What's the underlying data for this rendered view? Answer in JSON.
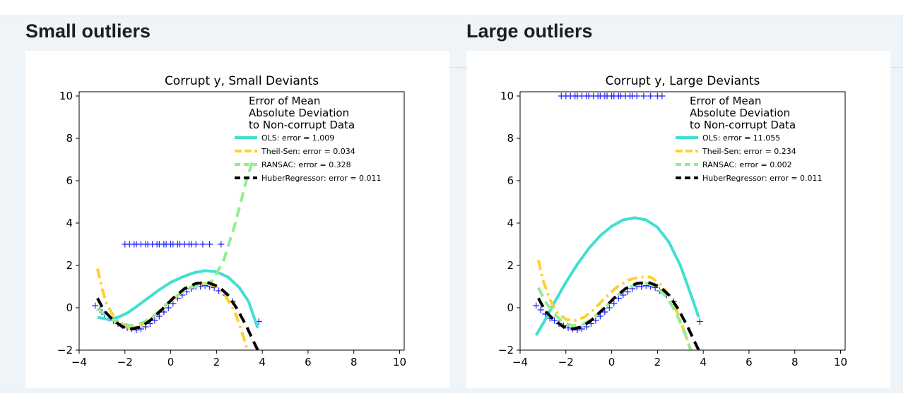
{
  "panels": [
    {
      "heading": "Small outliers"
    },
    {
      "heading": "Large outliers"
    }
  ],
  "colors": {
    "ols": "#40e0d0",
    "theil_sen": "#ffd02e",
    "ransac": "#90ee90",
    "huber": "#000000",
    "points": "#1f1fff"
  },
  "chart_data": [
    {
      "type": "scatter",
      "title": "Corrupt y, Small Deviants",
      "xlim": [
        -4,
        10.2
      ],
      "ylim": [
        -2,
        10.2
      ],
      "xticks": [
        "−4",
        "−2",
        "0",
        "2",
        "4",
        "6",
        "8",
        "10"
      ],
      "xtick_values": [
        -4,
        -2,
        0,
        2,
        4,
        6,
        8,
        10
      ],
      "yticks": [
        "−2",
        "0",
        "2",
        "4",
        "6",
        "8",
        "10"
      ],
      "ytick_values": [
        -2,
        0,
        2,
        4,
        6,
        8,
        10
      ],
      "legend_title": [
        "Error of Mean",
        "Absolute Deviation",
        "to Non-corrupt Data"
      ],
      "legend_position": "upper-right",
      "series": [
        {
          "name": "OLS: error = 1.009",
          "key": "ols",
          "style": "solid",
          "points": [
            [
              -3.2,
              -0.45
            ],
            [
              -2.7,
              -0.55
            ],
            [
              -2.3,
              -0.45
            ],
            [
              -1.9,
              -0.25
            ],
            [
              -1.5,
              0.05
            ],
            [
              -1.0,
              0.45
            ],
            [
              -0.5,
              0.85
            ],
            [
              0,
              1.2
            ],
            [
              0.5,
              1.45
            ],
            [
              1.0,
              1.65
            ],
            [
              1.5,
              1.75
            ],
            [
              2.0,
              1.7
            ],
            [
              2.5,
              1.45
            ],
            [
              3.0,
              0.95
            ],
            [
              3.4,
              0.3
            ],
            [
              3.8,
              -0.95
            ]
          ]
        },
        {
          "name": "Theil-Sen: error = 0.034",
          "key": "theil_sen",
          "style": "dashdot",
          "points": [
            [
              -3.2,
              1.85
            ],
            [
              -3.0,
              0.9
            ],
            [
              -2.8,
              0.2
            ],
            [
              -2.5,
              -0.4
            ],
            [
              -2.2,
              -0.75
            ],
            [
              -1.8,
              -0.95
            ],
            [
              -1.4,
              -0.9
            ],
            [
              -1.0,
              -0.65
            ],
            [
              -0.5,
              -0.2
            ],
            [
              0,
              0.3
            ],
            [
              0.5,
              0.75
            ],
            [
              1.0,
              1.05
            ],
            [
              1.5,
              1.15
            ],
            [
              2.0,
              1.0
            ],
            [
              2.4,
              0.55
            ],
            [
              2.8,
              -0.2
            ],
            [
              3.1,
              -1.1
            ],
            [
              3.35,
              -2.0
            ]
          ]
        },
        {
          "name": "RANSAC: error = 0.328",
          "key": "ransac",
          "style": "dashed",
          "points": [
            [
              -3.2,
              -0.05
            ],
            [
              -2.7,
              -0.45
            ],
            [
              -2.2,
              -0.75
            ],
            [
              -1.7,
              -0.85
            ],
            [
              -1.2,
              -0.7
            ],
            [
              -0.7,
              -0.35
            ],
            [
              -0.2,
              0.15
            ],
            [
              0.3,
              0.6
            ],
            [
              0.8,
              0.95
            ],
            [
              1.3,
              1.05
            ],
            [
              1.8,
              1.25
            ],
            [
              2.3,
              2.2
            ],
            [
              2.8,
              3.9
            ],
            [
              3.3,
              6.0
            ],
            [
              3.6,
              7.0
            ]
          ]
        },
        {
          "name": "HuberRegressor: error = 0.011",
          "key": "huber",
          "style": "dashed",
          "points": [
            [
              -3.2,
              0.45
            ],
            [
              -2.9,
              -0.15
            ],
            [
              -2.5,
              -0.6
            ],
            [
              -2.1,
              -0.9
            ],
            [
              -1.7,
              -1.0
            ],
            [
              -1.3,
              -0.9
            ],
            [
              -0.9,
              -0.6
            ],
            [
              -0.4,
              -0.1
            ],
            [
              0.1,
              0.45
            ],
            [
              0.6,
              0.9
            ],
            [
              1.1,
              1.15
            ],
            [
              1.6,
              1.2
            ],
            [
              2.1,
              1.0
            ],
            [
              2.5,
              0.6
            ],
            [
              2.9,
              -0.05
            ],
            [
              3.3,
              -0.85
            ],
            [
              3.6,
              -1.55
            ],
            [
              3.8,
              -2.0
            ]
          ]
        }
      ],
      "scatter_points": [
        [
          -3.3,
          0.1
        ],
        [
          -3.1,
          -0.1
        ],
        [
          -2.9,
          -0.3
        ],
        [
          -2.7,
          -0.5
        ],
        [
          -2.5,
          -0.6
        ],
        [
          -2.3,
          -0.75
        ],
        [
          -2.1,
          -0.85
        ],
        [
          -1.9,
          -0.95
        ],
        [
          -1.7,
          -1.0
        ],
        [
          -1.5,
          -1.05
        ],
        [
          -1.3,
          -1.0
        ],
        [
          -1.1,
          -0.9
        ],
        [
          -0.9,
          -0.75
        ],
        [
          -0.7,
          -0.6
        ],
        [
          -0.5,
          -0.4
        ],
        [
          -0.3,
          -0.2
        ],
        [
          -0.1,
          0.0
        ],
        [
          0.1,
          0.2
        ],
        [
          0.3,
          0.45
        ],
        [
          0.5,
          0.6
        ],
        [
          0.7,
          0.75
        ],
        [
          0.9,
          0.9
        ],
        [
          1.1,
          1.0
        ],
        [
          1.3,
          1.0
        ],
        [
          1.5,
          1.05
        ],
        [
          1.7,
          1.0
        ],
        [
          1.9,
          0.95
        ],
        [
          2.1,
          0.8
        ],
        [
          2.4,
          0.6
        ],
        [
          2.7,
          0.3
        ],
        [
          3.85,
          -0.65
        ],
        [
          -2.0,
          3
        ],
        [
          -1.8,
          3
        ],
        [
          -1.6,
          3
        ],
        [
          -1.5,
          3
        ],
        [
          -1.3,
          3
        ],
        [
          -1.1,
          3
        ],
        [
          -1.0,
          3
        ],
        [
          -0.8,
          3
        ],
        [
          -0.6,
          3
        ],
        [
          -0.5,
          3
        ],
        [
          -0.3,
          3
        ],
        [
          -0.2,
          3
        ],
        [
          0.0,
          3
        ],
        [
          0.1,
          3
        ],
        [
          0.3,
          3
        ],
        [
          0.4,
          3
        ],
        [
          0.6,
          3
        ],
        [
          0.8,
          3
        ],
        [
          0.9,
          3
        ],
        [
          1.1,
          3
        ],
        [
          1.4,
          3
        ],
        [
          1.7,
          3
        ],
        [
          2.2,
          3
        ]
      ]
    },
    {
      "type": "scatter",
      "title": "Corrupt y, Large Deviants",
      "xlim": [
        -4,
        10.2
      ],
      "ylim": [
        -2,
        10.2
      ],
      "xticks": [
        "−4",
        "−2",
        "0",
        "2",
        "4",
        "6",
        "8",
        "10"
      ],
      "xtick_values": [
        -4,
        -2,
        0,
        2,
        4,
        6,
        8,
        10
      ],
      "yticks": [
        "−2",
        "0",
        "2",
        "4",
        "6",
        "8",
        "10"
      ],
      "ytick_values": [
        -2,
        0,
        2,
        4,
        6,
        8,
        10
      ],
      "legend_title": [
        "Error of Mean",
        "Absolute Deviation",
        "to Non-corrupt Data"
      ],
      "legend_position": "upper-right",
      "series": [
        {
          "name": "OLS: error = 11.055",
          "key": "ols",
          "style": "solid",
          "points": [
            [
              -3.3,
              -1.3
            ],
            [
              -3.0,
              -0.75
            ],
            [
              -2.5,
              0.25
            ],
            [
              -2.0,
              1.2
            ],
            [
              -1.5,
              2.05
            ],
            [
              -1.0,
              2.8
            ],
            [
              -0.5,
              3.4
            ],
            [
              0,
              3.85
            ],
            [
              0.5,
              4.15
            ],
            [
              1.0,
              4.25
            ],
            [
              1.5,
              4.15
            ],
            [
              2.0,
              3.8
            ],
            [
              2.5,
              3.1
            ],
            [
              3.0,
              2.0
            ],
            [
              3.5,
              0.5
            ],
            [
              3.8,
              -0.45
            ]
          ]
        },
        {
          "name": "Theil-Sen: error = 0.234",
          "key": "theil_sen",
          "style": "dashdot",
          "points": [
            [
              -3.2,
              2.25
            ],
            [
              -3.0,
              1.3
            ],
            [
              -2.7,
              0.4
            ],
            [
              -2.4,
              -0.2
            ],
            [
              -2.0,
              -0.55
            ],
            [
              -1.6,
              -0.6
            ],
            [
              -1.2,
              -0.45
            ],
            [
              -0.8,
              -0.1
            ],
            [
              -0.3,
              0.45
            ],
            [
              0.2,
              0.95
            ],
            [
              0.7,
              1.3
            ],
            [
              1.2,
              1.45
            ],
            [
              1.7,
              1.45
            ],
            [
              2.1,
              1.15
            ],
            [
              2.5,
              0.6
            ],
            [
              2.9,
              -0.3
            ],
            [
              3.2,
              -1.2
            ],
            [
              3.45,
              -2.0
            ]
          ]
        },
        {
          "name": "RANSAC: error = 0.002",
          "key": "ransac",
          "style": "dashed",
          "points": [
            [
              -3.2,
              0.95
            ],
            [
              -2.9,
              0.3
            ],
            [
              -2.5,
              -0.3
            ],
            [
              -2.1,
              -0.7
            ],
            [
              -1.7,
              -0.85
            ],
            [
              -1.3,
              -0.8
            ],
            [
              -0.9,
              -0.55
            ],
            [
              -0.4,
              -0.1
            ],
            [
              0.1,
              0.45
            ],
            [
              0.6,
              0.9
            ],
            [
              1.1,
              1.1
            ],
            [
              1.6,
              1.15
            ],
            [
              2.0,
              0.95
            ],
            [
              2.4,
              0.5
            ],
            [
              2.8,
              -0.2
            ],
            [
              3.2,
              -1.2
            ],
            [
              3.45,
              -2.0
            ]
          ]
        },
        {
          "name": "HuberRegressor: error = 0.011",
          "key": "huber",
          "style": "dashed",
          "points": [
            [
              -3.2,
              0.45
            ],
            [
              -2.9,
              -0.15
            ],
            [
              -2.5,
              -0.6
            ],
            [
              -2.1,
              -0.9
            ],
            [
              -1.7,
              -1.0
            ],
            [
              -1.3,
              -0.9
            ],
            [
              -0.9,
              -0.6
            ],
            [
              -0.4,
              -0.1
            ],
            [
              0.1,
              0.45
            ],
            [
              0.6,
              0.9
            ],
            [
              1.1,
              1.15
            ],
            [
              1.6,
              1.2
            ],
            [
              2.1,
              1.0
            ],
            [
              2.5,
              0.6
            ],
            [
              2.9,
              -0.05
            ],
            [
              3.3,
              -0.85
            ],
            [
              3.6,
              -1.55
            ],
            [
              3.8,
              -2.0
            ]
          ]
        }
      ],
      "scatter_points": [
        [
          -3.3,
          0.1
        ],
        [
          -3.1,
          -0.1
        ],
        [
          -2.9,
          -0.3
        ],
        [
          -2.7,
          -0.5
        ],
        [
          -2.5,
          -0.6
        ],
        [
          -2.3,
          -0.75
        ],
        [
          -2.1,
          -0.85
        ],
        [
          -1.9,
          -0.95
        ],
        [
          -1.7,
          -1.0
        ],
        [
          -1.5,
          -1.05
        ],
        [
          -1.3,
          -1.0
        ],
        [
          -1.1,
          -0.9
        ],
        [
          -0.9,
          -0.75
        ],
        [
          -0.7,
          -0.6
        ],
        [
          -0.5,
          -0.4
        ],
        [
          -0.3,
          -0.2
        ],
        [
          -0.1,
          0.0
        ],
        [
          0.1,
          0.2
        ],
        [
          0.3,
          0.45
        ],
        [
          0.5,
          0.6
        ],
        [
          0.7,
          0.75
        ],
        [
          0.9,
          0.9
        ],
        [
          1.1,
          1.0
        ],
        [
          1.3,
          1.0
        ],
        [
          1.5,
          1.05
        ],
        [
          1.7,
          1.0
        ],
        [
          1.9,
          0.95
        ],
        [
          2.1,
          0.8
        ],
        [
          2.4,
          0.6
        ],
        [
          2.7,
          0.3
        ],
        [
          3.85,
          -0.65
        ],
        [
          -2.2,
          10
        ],
        [
          -2.0,
          10
        ],
        [
          -1.8,
          10
        ],
        [
          -1.6,
          10
        ],
        [
          -1.5,
          10
        ],
        [
          -1.3,
          10
        ],
        [
          -1.1,
          10
        ],
        [
          -1.0,
          10
        ],
        [
          -0.8,
          10
        ],
        [
          -0.6,
          10
        ],
        [
          -0.5,
          10
        ],
        [
          -0.3,
          10
        ],
        [
          -0.2,
          10
        ],
        [
          0.0,
          10
        ],
        [
          0.1,
          10
        ],
        [
          0.3,
          10
        ],
        [
          0.4,
          10
        ],
        [
          0.6,
          10
        ],
        [
          0.8,
          10
        ],
        [
          0.9,
          10
        ],
        [
          1.1,
          10
        ],
        [
          1.4,
          10
        ],
        [
          1.7,
          10
        ],
        [
          2.0,
          10
        ],
        [
          2.2,
          10
        ]
      ]
    }
  ]
}
